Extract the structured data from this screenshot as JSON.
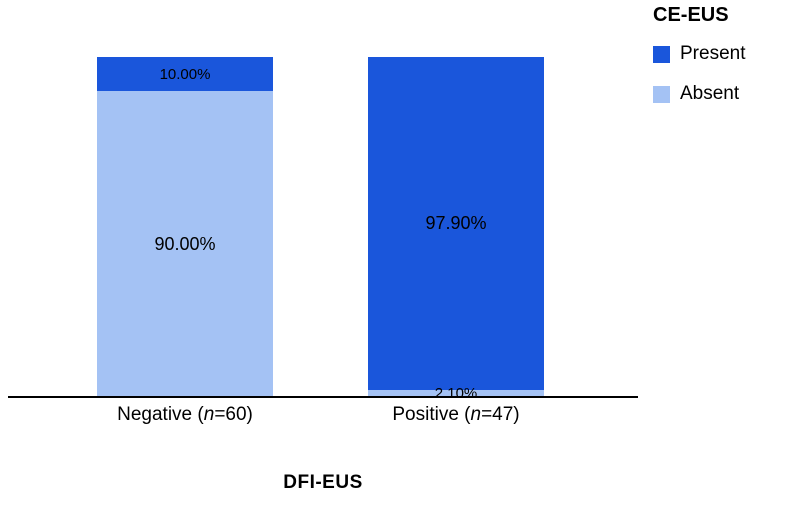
{
  "legend": {
    "title": "CE-EUS",
    "items": [
      {
        "label": "Present",
        "color": "#1A56DB"
      },
      {
        "label": "Absent",
        "color": "#A4C2F4"
      }
    ]
  },
  "xaxis": {
    "label": "DFI-EUS",
    "categories": [
      {
        "prefix": "Negative (",
        "var": "n",
        "suffix": "=60)"
      },
      {
        "prefix": "Positive (",
        "var": "n",
        "suffix": "=47)"
      }
    ]
  },
  "bars": [
    {
      "category": "Negative (n=60)",
      "segments": [
        {
          "series": "Present",
          "pct": 10.0,
          "label": "10.00%",
          "color": "#1A56DB"
        },
        {
          "series": "Absent",
          "pct": 90.0,
          "label": "90.00%",
          "color": "#A4C2F4"
        }
      ]
    },
    {
      "category": "Positive (n=47)",
      "segments": [
        {
          "series": "Present",
          "pct": 97.9,
          "label": "97.90%",
          "color": "#1A56DB"
        },
        {
          "series": "Absent",
          "pct": 2.1,
          "label": "2.10%",
          "color": "#A4C2F4"
        }
      ]
    }
  ],
  "chart_data": {
    "type": "bar",
    "subtype": "stacked-percent-column",
    "title": "",
    "xlabel": "DFI-EUS",
    "ylabel": "",
    "ylim": [
      0,
      100
    ],
    "grid": false,
    "legend_position": "top-right",
    "legend_title": "CE-EUS",
    "categories": [
      "Negative (n=60)",
      "Positive (n=47)"
    ],
    "series": [
      {
        "name": "Present",
        "color": "#1A56DB",
        "values": [
          10.0,
          97.9
        ]
      },
      {
        "name": "Absent",
        "color": "#A4C2F4",
        "values": [
          90.0,
          2.1
        ]
      }
    ],
    "data_labels": [
      [
        "10.00%",
        "90.00%"
      ],
      [
        "97.90%",
        "2.10%"
      ]
    ]
  }
}
